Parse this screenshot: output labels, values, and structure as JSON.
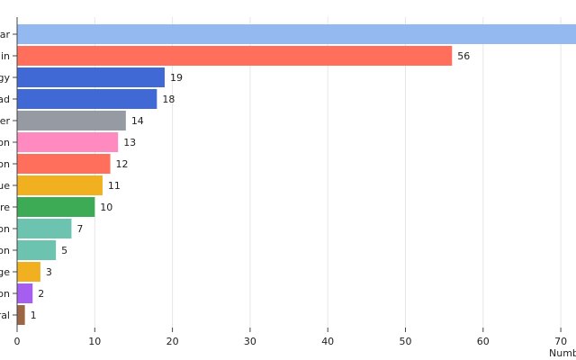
{
  "chart_data": {
    "type": "bar",
    "orientation": "horizontal",
    "categories": [
      "ar",
      "in",
      "gy",
      "ad",
      "er",
      "on",
      "on",
      "ue",
      "re",
      "on",
      "on",
      "ge",
      "on",
      "ral"
    ],
    "values": [
      72,
      56,
      19,
      18,
      14,
      13,
      12,
      11,
      10,
      7,
      5,
      3,
      2,
      1
    ],
    "data_labels": [
      "",
      "56",
      "19",
      "18",
      "14",
      "13",
      "12",
      "11",
      "10",
      "7",
      "5",
      "3",
      "2",
      "1"
    ],
    "colors": [
      "#94b8f0",
      "#ff6f5c",
      "#4169d6",
      "#4169d6",
      "#959aa3",
      "#ff8ac0",
      "#ff6f5c",
      "#f0b01f",
      "#3daa55",
      "#6cc4b0",
      "#6cc4b0",
      "#f0b01f",
      "#a65ef0",
      "#9c6644"
    ],
    "xticks": [
      "0",
      "10",
      "20",
      "30",
      "40",
      "50",
      "60",
      "70"
    ],
    "xlim": [
      0,
      72
    ],
    "xlabel": "Numb",
    "grid": "vertical"
  }
}
